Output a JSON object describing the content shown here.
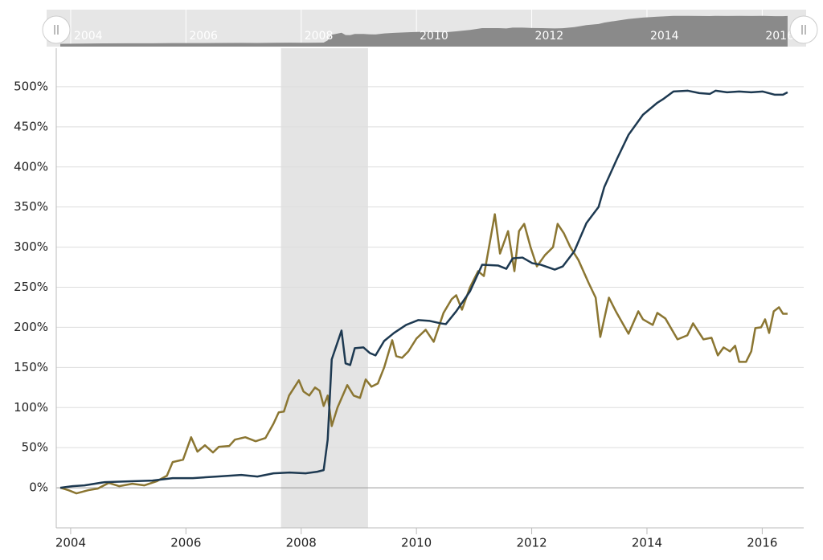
{
  "chart_data": {
    "type": "line",
    "xlim": [
      2003.75,
      2016.72
    ],
    "xticks": [
      2004,
      2006,
      2008,
      2010,
      2012,
      2014,
      2016
    ],
    "ylim": [
      -50,
      548
    ],
    "yticks": [
      {
        "value": 0,
        "label": "0%"
      },
      {
        "value": 50,
        "label": "50%"
      },
      {
        "value": 100,
        "label": "100%"
      },
      {
        "value": 150,
        "label": "150%"
      },
      {
        "value": 200,
        "label": "200%"
      },
      {
        "value": 250,
        "label": "250%"
      },
      {
        "value": 300,
        "label": "300%"
      },
      {
        "value": 350,
        "label": "350%"
      },
      {
        "value": 400,
        "label": "400%"
      },
      {
        "value": 450,
        "label": "450%"
      },
      {
        "value": 500,
        "label": "500%"
      }
    ],
    "grid": true,
    "shade": [
      2007.65,
      2009.16
    ],
    "series": [
      {
        "color": "#1d3951",
        "x": [
          2003.82,
          2004.03,
          2004.24,
          2004.59,
          2005.0,
          2005.42,
          2005.77,
          2006.12,
          2006.54,
          2006.96,
          2007.24,
          2007.52,
          2007.8,
          2008.08,
          2008.28,
          2008.39,
          2008.46,
          2008.53,
          2008.7,
          2008.77,
          2008.85,
          2008.93,
          2009.08,
          2009.19,
          2009.29,
          2009.44,
          2009.61,
          2009.82,
          2010.03,
          2010.23,
          2010.42,
          2010.51,
          2010.69,
          2010.93,
          2011.14,
          2011.42,
          2011.56,
          2011.67,
          2011.84,
          2012.01,
          2012.16,
          2012.4,
          2012.54,
          2012.74,
          2012.95,
          2013.16,
          2013.26,
          2013.48,
          2013.68,
          2013.93,
          2014.18,
          2014.29,
          2014.46,
          2014.71,
          2014.91,
          2015.09,
          2015.19,
          2015.39,
          2015.6,
          2015.81,
          2016.01,
          2016.22,
          2016.36,
          2016.44
        ],
        "values": [
          0,
          2,
          3,
          7,
          8,
          9,
          12,
          12,
          14,
          16,
          14,
          18,
          19,
          18,
          20,
          22,
          60,
          160,
          196,
          155,
          153,
          174,
          175,
          168,
          165,
          183,
          193,
          203,
          209,
          208,
          205,
          204,
          220,
          245,
          278,
          277,
          273,
          286,
          287,
          280,
          278,
          272,
          276,
          295,
          330,
          350,
          375,
          410,
          440,
          465,
          480,
          485,
          494,
          495,
          492,
          491,
          495,
          493,
          494,
          493,
          494,
          490,
          490,
          493
        ]
      },
      {
        "color": "#8b7632",
        "x": [
          2003.82,
          2003.96,
          2004.1,
          2004.31,
          2004.47,
          2004.66,
          2004.84,
          2005.07,
          2005.28,
          2005.49,
          2005.67,
          2005.77,
          2005.95,
          2006.09,
          2006.2,
          2006.33,
          2006.47,
          2006.57,
          2006.75,
          2006.85,
          2007.03,
          2007.21,
          2007.38,
          2007.52,
          2007.61,
          2007.7,
          2007.79,
          2007.96,
          2008.04,
          2008.14,
          2008.24,
          2008.32,
          2008.39,
          2008.46,
          2008.53,
          2008.63,
          2008.8,
          2008.91,
          2009.02,
          2009.12,
          2009.22,
          2009.33,
          2009.44,
          2009.58,
          2009.65,
          2009.75,
          2009.86,
          2010.0,
          2010.16,
          2010.3,
          2010.47,
          2010.61,
          2010.69,
          2010.79,
          2010.93,
          2011.07,
          2011.17,
          2011.36,
          2011.45,
          2011.59,
          2011.7,
          2011.78,
          2011.87,
          2011.98,
          2012.09,
          2012.23,
          2012.37,
          2012.45,
          2012.56,
          2012.67,
          2012.81,
          2012.99,
          2013.11,
          2013.19,
          2013.34,
          2013.46,
          2013.68,
          2013.85,
          2013.93,
          2014.1,
          2014.18,
          2014.32,
          2014.53,
          2014.7,
          2014.8,
          2014.98,
          2015.12,
          2015.23,
          2015.33,
          2015.44,
          2015.53,
          2015.6,
          2015.72,
          2015.81,
          2015.88,
          2015.98,
          2016.05,
          2016.12,
          2016.2,
          2016.29,
          2016.36,
          2016.44
        ],
        "values": [
          0,
          -3,
          -7,
          -3,
          -1,
          6,
          2,
          5,
          3,
          8,
          15,
          32,
          35,
          63,
          45,
          53,
          44,
          51,
          52,
          60,
          63,
          58,
          62,
          80,
          94,
          95,
          115,
          134,
          120,
          115,
          125,
          121,
          102,
          115,
          77,
          100,
          128,
          115,
          112,
          135,
          126,
          130,
          150,
          184,
          164,
          162,
          170,
          186,
          197,
          182,
          218,
          235,
          240,
          222,
          250,
          270,
          264,
          341,
          292,
          320,
          270,
          320,
          329,
          300,
          276,
          290,
          300,
          329,
          317,
          300,
          284,
          255,
          237,
          188,
          237,
          220,
          192,
          220,
          210,
          203,
          218,
          211,
          185,
          190,
          205,
          185,
          187,
          165,
          175,
          170,
          177,
          157,
          157,
          170,
          199,
          200,
          210,
          193,
          220,
          225,
          217,
          217
        ]
      }
    ]
  }
}
